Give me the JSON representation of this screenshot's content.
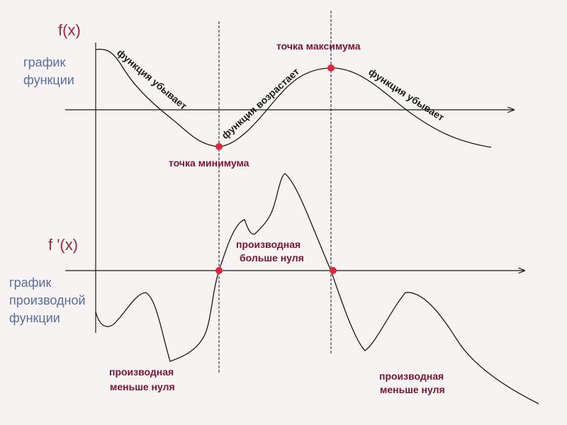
{
  "top_graph": {
    "axis_label": "f(x)",
    "caption": [
      "график",
      "функции"
    ],
    "min_label": "точка минимума",
    "max_label": "точка максимума",
    "decreasing_left": "функция убывает",
    "increasing": "функция возрастает",
    "decreasing_right": "функция убывает"
  },
  "bottom_graph": {
    "axis_label": "f '(x)",
    "caption": [
      "график",
      "производной",
      "функции"
    ],
    "positive_label": [
      "производная",
      "больше нуля"
    ],
    "negative_left_label": [
      "производная",
      "меньше нуля"
    ],
    "negative_right_label": [
      "производная",
      "меньше нуля"
    ]
  },
  "colors": {
    "accent_label": "#7a1430",
    "axis_name": "#a0263f",
    "caption": "#5a6e9e",
    "marker": "#e0263f",
    "line": "#1a1a1a"
  }
}
